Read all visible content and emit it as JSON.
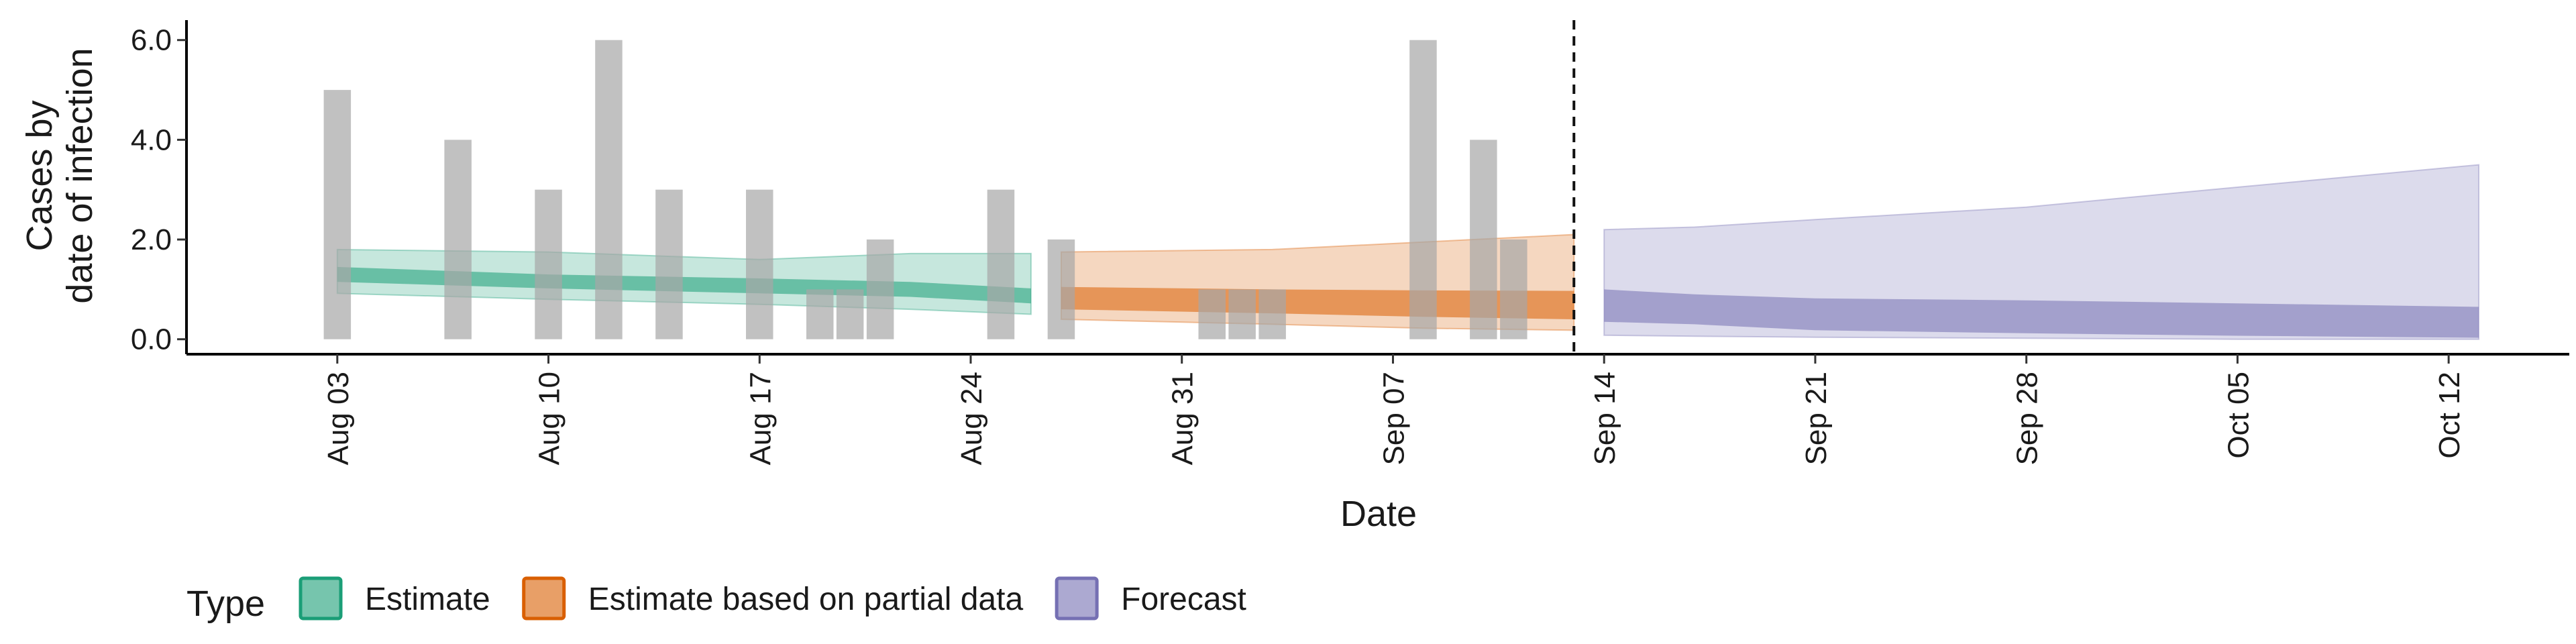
{
  "chart_data": {
    "type": "area",
    "xlabel": "Date",
    "ylabel_lines": [
      "Cases by",
      "date of infection"
    ],
    "x_ticks": [
      {
        "date": "2020-08-03",
        "label": "Aug 03"
      },
      {
        "date": "2020-08-10",
        "label": "Aug 10"
      },
      {
        "date": "2020-08-17",
        "label": "Aug 17"
      },
      {
        "date": "2020-08-24",
        "label": "Aug 24"
      },
      {
        "date": "2020-08-31",
        "label": "Aug 31"
      },
      {
        "date": "2020-09-07",
        "label": "Sep 07"
      },
      {
        "date": "2020-09-14",
        "label": "Sep 14"
      },
      {
        "date": "2020-09-21",
        "label": "Sep 21"
      },
      {
        "date": "2020-09-28",
        "label": "Sep 28"
      },
      {
        "date": "2020-10-05",
        "label": "Oct 05"
      },
      {
        "date": "2020-10-12",
        "label": "Oct 12"
      }
    ],
    "y_ticks": [
      {
        "value": 0,
        "label": "0.0"
      },
      {
        "value": 2,
        "label": "2.0"
      },
      {
        "value": 4,
        "label": "4.0"
      },
      {
        "value": 6,
        "label": "6.0"
      }
    ],
    "xlim": [
      "2020-07-29",
      "2020-10-16"
    ],
    "ylim": [
      -0.3,
      6.4
    ],
    "forecast_start_line": "2020-09-13",
    "grid": false,
    "observed_cases": [
      {
        "date": "2020-08-03",
        "value": 5
      },
      {
        "date": "2020-08-07",
        "value": 4
      },
      {
        "date": "2020-08-10",
        "value": 3
      },
      {
        "date": "2020-08-12",
        "value": 6
      },
      {
        "date": "2020-08-14",
        "value": 3
      },
      {
        "date": "2020-08-17",
        "value": 3
      },
      {
        "date": "2020-08-19",
        "value": 1
      },
      {
        "date": "2020-08-20",
        "value": 1
      },
      {
        "date": "2020-08-21",
        "value": 2
      },
      {
        "date": "2020-08-25",
        "value": 3
      },
      {
        "date": "2020-08-27",
        "value": 2
      },
      {
        "date": "2020-09-01",
        "value": 1
      },
      {
        "date": "2020-09-02",
        "value": 1
      },
      {
        "date": "2020-09-03",
        "value": 1
      },
      {
        "date": "2020-09-08",
        "value": 6
      },
      {
        "date": "2020-09-10",
        "value": 4
      },
      {
        "date": "2020-09-11",
        "value": 2
      }
    ],
    "series": [
      {
        "name": "Estimate",
        "color": "#1b9e77",
        "points": [
          {
            "date": "2020-08-03",
            "lo90": 0.92,
            "hi90": 1.8,
            "lo50": 1.15,
            "hi50": 1.45
          },
          {
            "date": "2020-08-10",
            "lo90": 0.8,
            "hi90": 1.75,
            "lo50": 1.02,
            "hi50": 1.3
          },
          {
            "date": "2020-08-17",
            "lo90": 0.7,
            "hi90": 1.6,
            "lo50": 0.92,
            "hi50": 1.22
          },
          {
            "date": "2020-08-22",
            "lo90": 0.6,
            "hi90": 1.72,
            "lo50": 0.85,
            "hi50": 1.15
          },
          {
            "date": "2020-08-26",
            "lo90": 0.5,
            "hi90": 1.72,
            "lo50": 0.72,
            "hi50": 1.02
          }
        ]
      },
      {
        "name": "Estimate based on partial data",
        "color": "#d95f02",
        "points": [
          {
            "date": "2020-08-27",
            "lo90": 0.4,
            "hi90": 1.75,
            "lo50": 0.6,
            "hi50": 1.05
          },
          {
            "date": "2020-09-03",
            "lo90": 0.3,
            "hi90": 1.8,
            "lo50": 0.52,
            "hi50": 1.0
          },
          {
            "date": "2020-09-08",
            "lo90": 0.22,
            "hi90": 1.95,
            "lo50": 0.45,
            "hi50": 0.98
          },
          {
            "date": "2020-09-13",
            "lo90": 0.18,
            "hi90": 2.1,
            "lo50": 0.4,
            "hi50": 0.97
          }
        ]
      },
      {
        "name": "Forecast",
        "color": "#7570b3",
        "points": [
          {
            "date": "2020-09-14",
            "lo90": 0.08,
            "hi90": 2.2,
            "lo50": 0.35,
            "hi50": 1.0
          },
          {
            "date": "2020-09-17",
            "lo90": 0.06,
            "hi90": 2.25,
            "lo50": 0.3,
            "hi50": 0.9
          },
          {
            "date": "2020-09-21",
            "lo90": 0.04,
            "hi90": 2.4,
            "lo50": 0.18,
            "hi50": 0.82
          },
          {
            "date": "2020-09-28",
            "lo90": 0.02,
            "hi90": 2.65,
            "lo50": 0.12,
            "hi50": 0.78
          },
          {
            "date": "2020-10-05",
            "lo90": 0.0,
            "hi90": 3.05,
            "lo50": 0.07,
            "hi50": 0.72
          },
          {
            "date": "2020-10-13",
            "lo90": 0.0,
            "hi90": 3.5,
            "lo50": 0.03,
            "hi50": 0.65
          }
        ]
      }
    ],
    "legend": {
      "title": "Type",
      "position": "bottom-left",
      "items": [
        {
          "label": "Estimate",
          "color": "#1b9e77"
        },
        {
          "label": "Estimate based on partial data",
          "color": "#d95f02"
        },
        {
          "label": "Forecast",
          "color": "#7570b3"
        }
      ]
    }
  }
}
